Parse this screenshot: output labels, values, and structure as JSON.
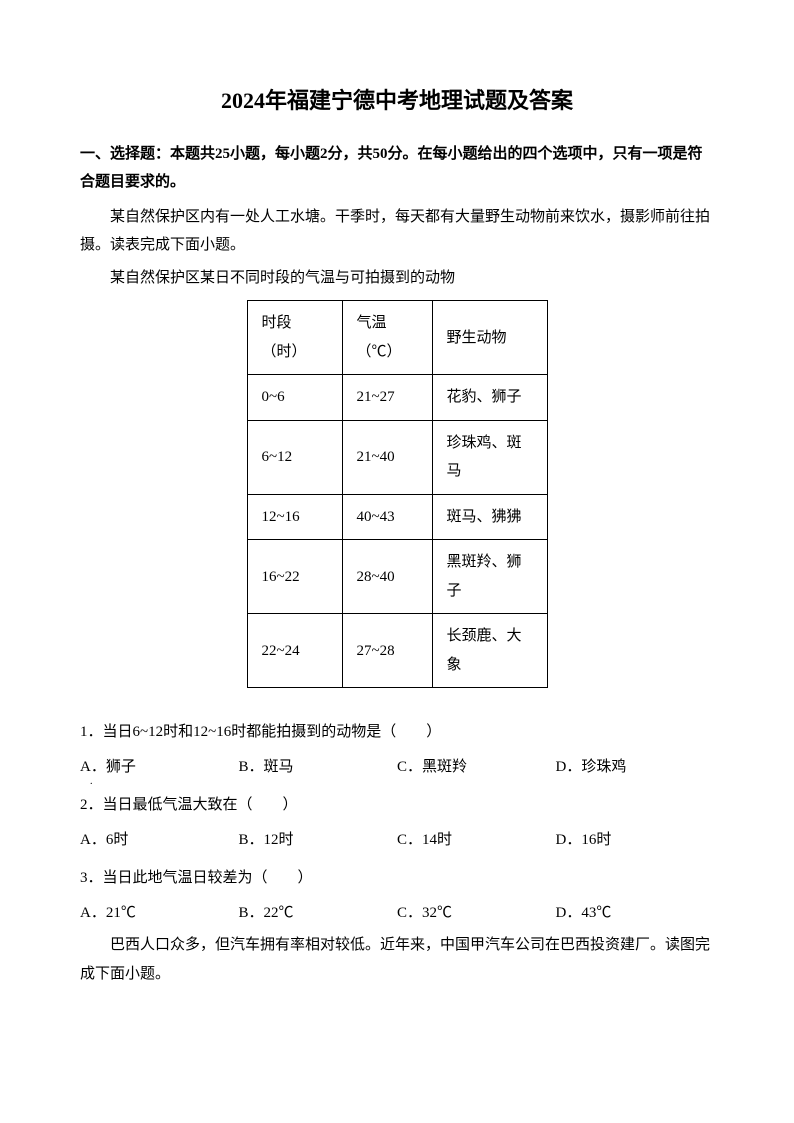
{
  "doc": {
    "title": "2024年福建宁德中考地理试题及答案",
    "section_header": "一、选择题：本题共25小题，每小题2分，共50分。在每小题给出的四个选项中，只有一项是符合题目要求的。",
    "passage1": "某自然保护区内有一处人工水塘。干季时，每天都有大量野生动物前来饮水，摄影师前往拍摄。读表完成下面小题。",
    "table_title": "某自然保护区某日不同时段的气温与可拍摄到的动物",
    "table": {
      "headers": {
        "col1": "时段（时）",
        "col2": "气温（℃）",
        "col3": "野生动物"
      },
      "rows": [
        {
          "time": "0~6",
          "temp": "21~27",
          "animal": "花豹、狮子"
        },
        {
          "time": "6~12",
          "temp": "21~40",
          "animal": "珍珠鸡、斑马"
        },
        {
          "time": "12~16",
          "temp": "40~43",
          "animal": "斑马、狒狒"
        },
        {
          "time": "16~22",
          "temp": "28~40",
          "animal": "黑斑羚、狮子"
        },
        {
          "time": "22~24",
          "temp": "27~28",
          "animal": "长颈鹿、大象"
        }
      ]
    },
    "q1": {
      "text": "1．当日6~12时和12~16时都能拍摄到的动物是（　　）",
      "a": "A．狮子",
      "b": "B．斑马",
      "c": "C．黑斑羚",
      "d": "D．珍珠鸡"
    },
    "q2": {
      "text": "2．当日最低气温大致在（　　）",
      "a": "A．6时",
      "b": "B．12时",
      "c": "C．14时",
      "d": "D．16时"
    },
    "q3": {
      "text": "3．当日此地气温日较差为（　　）",
      "a": "A．21℃",
      "b": "B．22℃",
      "c": "C．32℃",
      "d": "D．43℃"
    },
    "passage2": "巴西人口众多，但汽车拥有率相对较低。近年来，中国甲汽车公司在巴西投资建厂。读图完成下面小题。"
  }
}
